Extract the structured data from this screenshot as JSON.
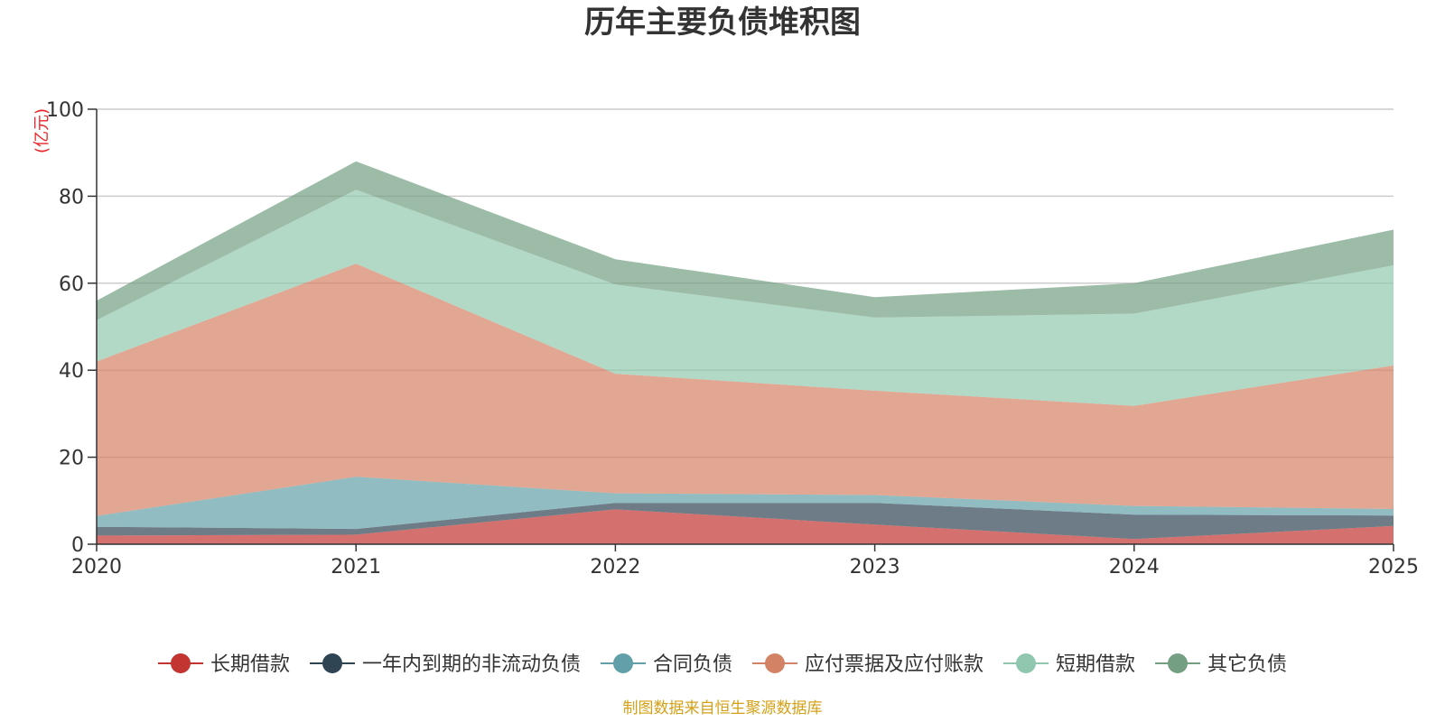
{
  "chart_data": {
    "type": "area",
    "stacked": true,
    "title": "历年主要负债堆积图",
    "unit_label": "(亿元)",
    "x": [
      "2020",
      "2021",
      "2022",
      "2023",
      "2024",
      "2025"
    ],
    "ylim": [
      0,
      100
    ],
    "yticks": [
      "0",
      "20",
      "40",
      "60",
      "80",
      "100"
    ],
    "grid": true,
    "legend_position": "bottom",
    "series": [
      {
        "name": "长期借款",
        "color": "#c23531",
        "values": [
          2.0,
          2.2,
          8.0,
          4.5,
          1.2,
          4.2
        ]
      },
      {
        "name": "一年内到期的非流动负债",
        "color": "#2f4554",
        "values": [
          2.0,
          1.3,
          1.5,
          5.0,
          5.6,
          2.4
        ]
      },
      {
        "name": "合同负债",
        "color": "#61a0a8",
        "values": [
          2.5,
          12.0,
          2.2,
          1.8,
          2.0,
          1.5
        ]
      },
      {
        "name": "应付票据及应付账款",
        "color": "#d48265",
        "values": [
          35.5,
          49.0,
          27.5,
          24.0,
          23.0,
          33.0
        ]
      },
      {
        "name": "短期借款",
        "color": "#91c7ae",
        "values": [
          9.5,
          17.0,
          20.5,
          16.8,
          21.2,
          23.0
        ]
      },
      {
        "name": "其它负债",
        "color": "#749f83",
        "values": [
          4.5,
          6.5,
          5.8,
          4.7,
          7.0,
          8.2
        ]
      }
    ]
  },
  "source_text": "制图数据来自恒生聚源数据库",
  "colors": {
    "unit_label": "#e8252a",
    "source_text": "#d4a017",
    "axis": "#333333",
    "grid": "#cccccc"
  }
}
